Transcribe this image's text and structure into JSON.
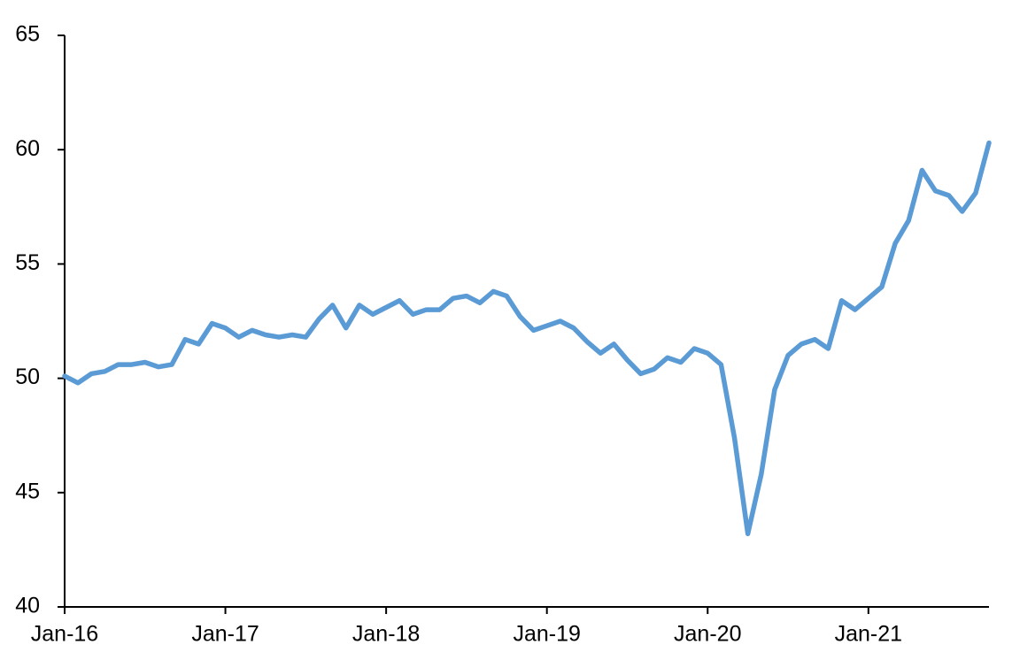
{
  "chart_data": {
    "type": "line",
    "categories": [
      "Jan-16",
      null,
      null,
      null,
      null,
      null,
      null,
      null,
      null,
      null,
      null,
      null,
      "Jan-17",
      null,
      null,
      null,
      null,
      null,
      null,
      null,
      null,
      null,
      null,
      null,
      "Jan-18",
      null,
      null,
      null,
      null,
      null,
      null,
      null,
      null,
      null,
      null,
      null,
      "Jan-19",
      null,
      null,
      null,
      null,
      null,
      null,
      null,
      null,
      null,
      null,
      null,
      "Jan-20",
      null,
      null,
      null,
      null,
      null,
      null,
      null,
      null,
      null,
      null,
      null,
      "Jan-21",
      null,
      null,
      null,
      null,
      null,
      null,
      null,
      null,
      null
    ],
    "values": [
      50.1,
      49.8,
      50.2,
      50.3,
      50.6,
      50.6,
      50.7,
      50.5,
      50.6,
      51.7,
      51.5,
      52.4,
      52.2,
      51.8,
      52.1,
      51.9,
      51.8,
      51.9,
      51.8,
      52.6,
      53.2,
      52.2,
      53.2,
      52.8,
      53.1,
      53.4,
      52.8,
      53.0,
      53.0,
      53.5,
      53.6,
      53.3,
      53.8,
      53.6,
      52.7,
      52.1,
      52.3,
      52.5,
      52.2,
      51.6,
      51.1,
      51.5,
      50.8,
      50.2,
      50.4,
      50.9,
      50.7,
      51.3,
      51.1,
      50.6,
      47.4,
      43.2,
      45.8,
      49.5,
      51.0,
      51.5,
      51.7,
      51.3,
      53.4,
      53.0,
      53.5,
      54.0,
      55.9,
      56.9,
      59.1,
      58.2,
      58.0,
      57.3,
      58.1,
      60.3
    ],
    "color": "#5b9bd5",
    "ylim": [
      40,
      65
    ],
    "yticks": [
      40,
      45,
      50,
      55,
      60,
      65
    ],
    "grid": false
  }
}
